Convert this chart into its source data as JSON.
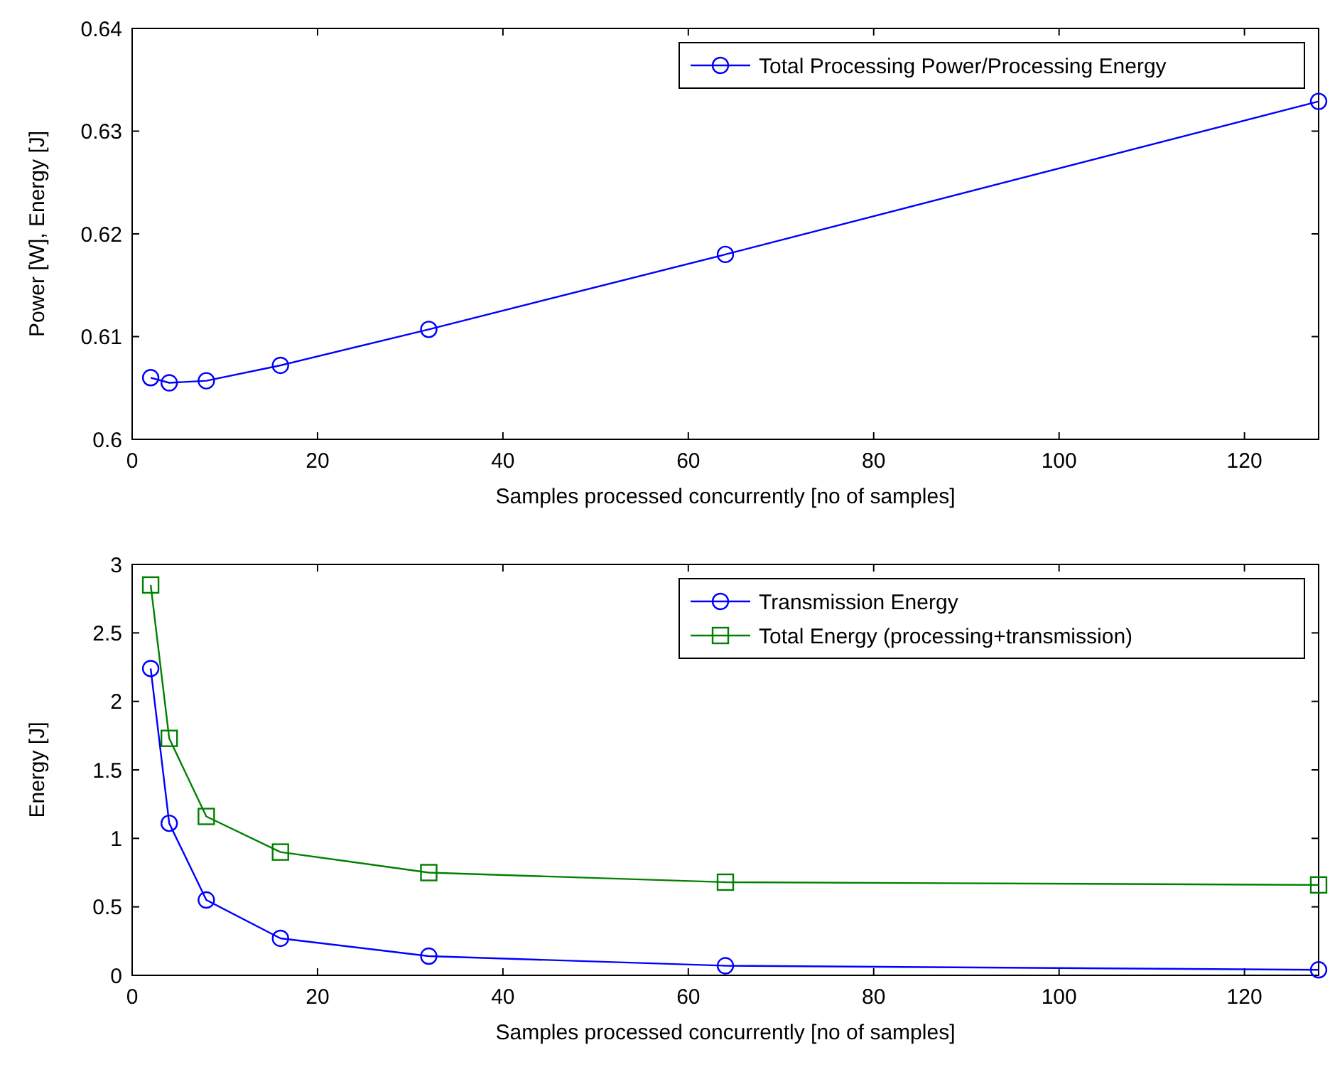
{
  "chart_data": [
    {
      "type": "line",
      "xlabel": "Samples processed concurrently [no of samples]",
      "ylabel": "Power [W], Energy [J]",
      "xlim": [
        0,
        128
      ],
      "xticks": [
        0,
        20,
        40,
        60,
        80,
        100,
        120
      ],
      "ylim": [
        0.6,
        0.64
      ],
      "yticks": [
        0.6,
        0.61,
        0.62,
        0.63,
        0.64
      ],
      "legend": "top right",
      "grid": false,
      "x": [
        2,
        4,
        8,
        16,
        32,
        64,
        128
      ],
      "series": [
        {
          "name": "Total Processing Power/Processing Energy",
          "color": "#0000ff",
          "marker": "circle",
          "values": [
            0.606,
            0.6055,
            0.6057,
            0.6072,
            0.6107,
            0.618,
            0.6329
          ]
        }
      ]
    },
    {
      "type": "line",
      "xlabel": "Samples processed concurrently [no of samples]",
      "ylabel": "Energy [J]",
      "xlim": [
        0,
        128
      ],
      "xticks": [
        0,
        20,
        40,
        60,
        80,
        100,
        120
      ],
      "ylim": [
        0,
        3
      ],
      "yticks": [
        0,
        0.5,
        1,
        1.5,
        2,
        2.5,
        3
      ],
      "legend": "top right",
      "grid": false,
      "x": [
        2,
        4,
        8,
        16,
        32,
        64,
        128
      ],
      "series": [
        {
          "name": "Transmission Energy",
          "color": "#0000ff",
          "marker": "circle",
          "values": [
            2.24,
            1.11,
            0.55,
            0.27,
            0.14,
            0.07,
            0.04
          ]
        },
        {
          "name": "Total Energy (processing+transmission)",
          "color": "#008000",
          "marker": "square",
          "values": [
            2.85,
            1.73,
            1.16,
            0.9,
            0.75,
            0.68,
            0.66
          ]
        }
      ]
    }
  ]
}
